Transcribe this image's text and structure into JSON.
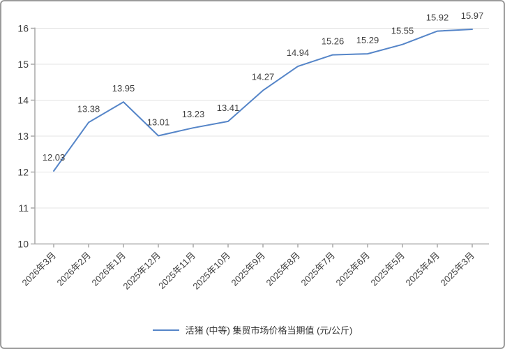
{
  "chart_data": {
    "type": "line",
    "title": "",
    "categories": [
      "2026年3月",
      "2026年2月",
      "2026年1月",
      "2025年12月",
      "2025年11月",
      "2025年10月",
      "2025年9月",
      "2025年8月",
      "2025年7月",
      "2025年6月",
      "2025年5月",
      "2025年4月",
      "2025年3月"
    ],
    "series": [
      {
        "name": "活猪 (中等) 集贸市场价格当期值 (元/公斤)",
        "values": [
          12.03,
          13.38,
          13.95,
          13.01,
          13.23,
          13.41,
          14.27,
          14.94,
          15.26,
          15.29,
          15.55,
          15.92,
          15.97
        ],
        "color": "#5585c8"
      }
    ],
    "ylim": [
      10,
      16
    ],
    "y_ticks": [
      10,
      11,
      12,
      13,
      14,
      15,
      16
    ],
    "grid": true,
    "data_labels": true,
    "legend_position": "bottom",
    "colors": {
      "axis": "#a9a9a9",
      "grid": "#e4e4e4",
      "text": "#404040",
      "frame_border": "#9b9b9b"
    }
  }
}
